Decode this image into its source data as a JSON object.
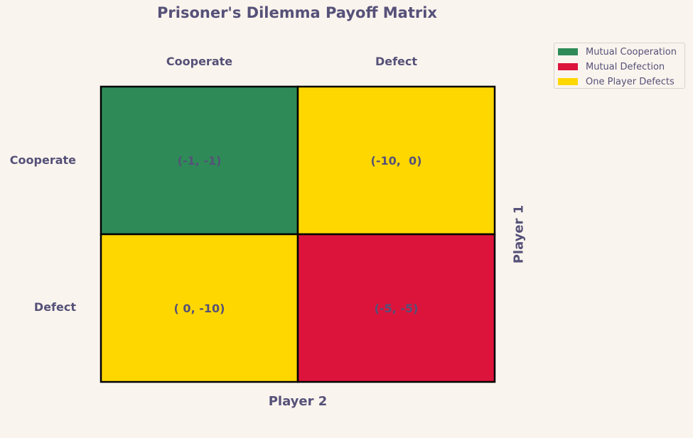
{
  "chart_data": {
    "type": "heatmap",
    "title": "Prisoner's Dilemma Payoff Matrix",
    "xlabel": "Player 2",
    "ylabel": "Player 1",
    "x_categories": [
      "Cooperate",
      "Defect"
    ],
    "y_categories": [
      "Cooperate",
      "Defect"
    ],
    "cells": [
      [
        {
          "label": "(-1, -1)",
          "p1": -1,
          "p2": -1,
          "outcome": "Mutual Cooperation"
        },
        {
          "label": "(-10,  0)",
          "p1": -10,
          "p2": 0,
          "outcome": "One Player Defects"
        }
      ],
      [
        {
          "label": "( 0, -10)",
          "p1": 0,
          "p2": -10,
          "outcome": "One Player Defects"
        },
        {
          "label": "(-5, -5)",
          "p1": -5,
          "p2": -5,
          "outcome": "Mutual Defection"
        }
      ]
    ],
    "legend": [
      {
        "name": "Mutual Cooperation",
        "color": "#2e8b57"
      },
      {
        "name": "Mutual Defection",
        "color": "#dc143c"
      },
      {
        "name": "One Player Defects",
        "color": "#ffd700"
      }
    ],
    "legend_position": "top-right",
    "grid": false
  }
}
